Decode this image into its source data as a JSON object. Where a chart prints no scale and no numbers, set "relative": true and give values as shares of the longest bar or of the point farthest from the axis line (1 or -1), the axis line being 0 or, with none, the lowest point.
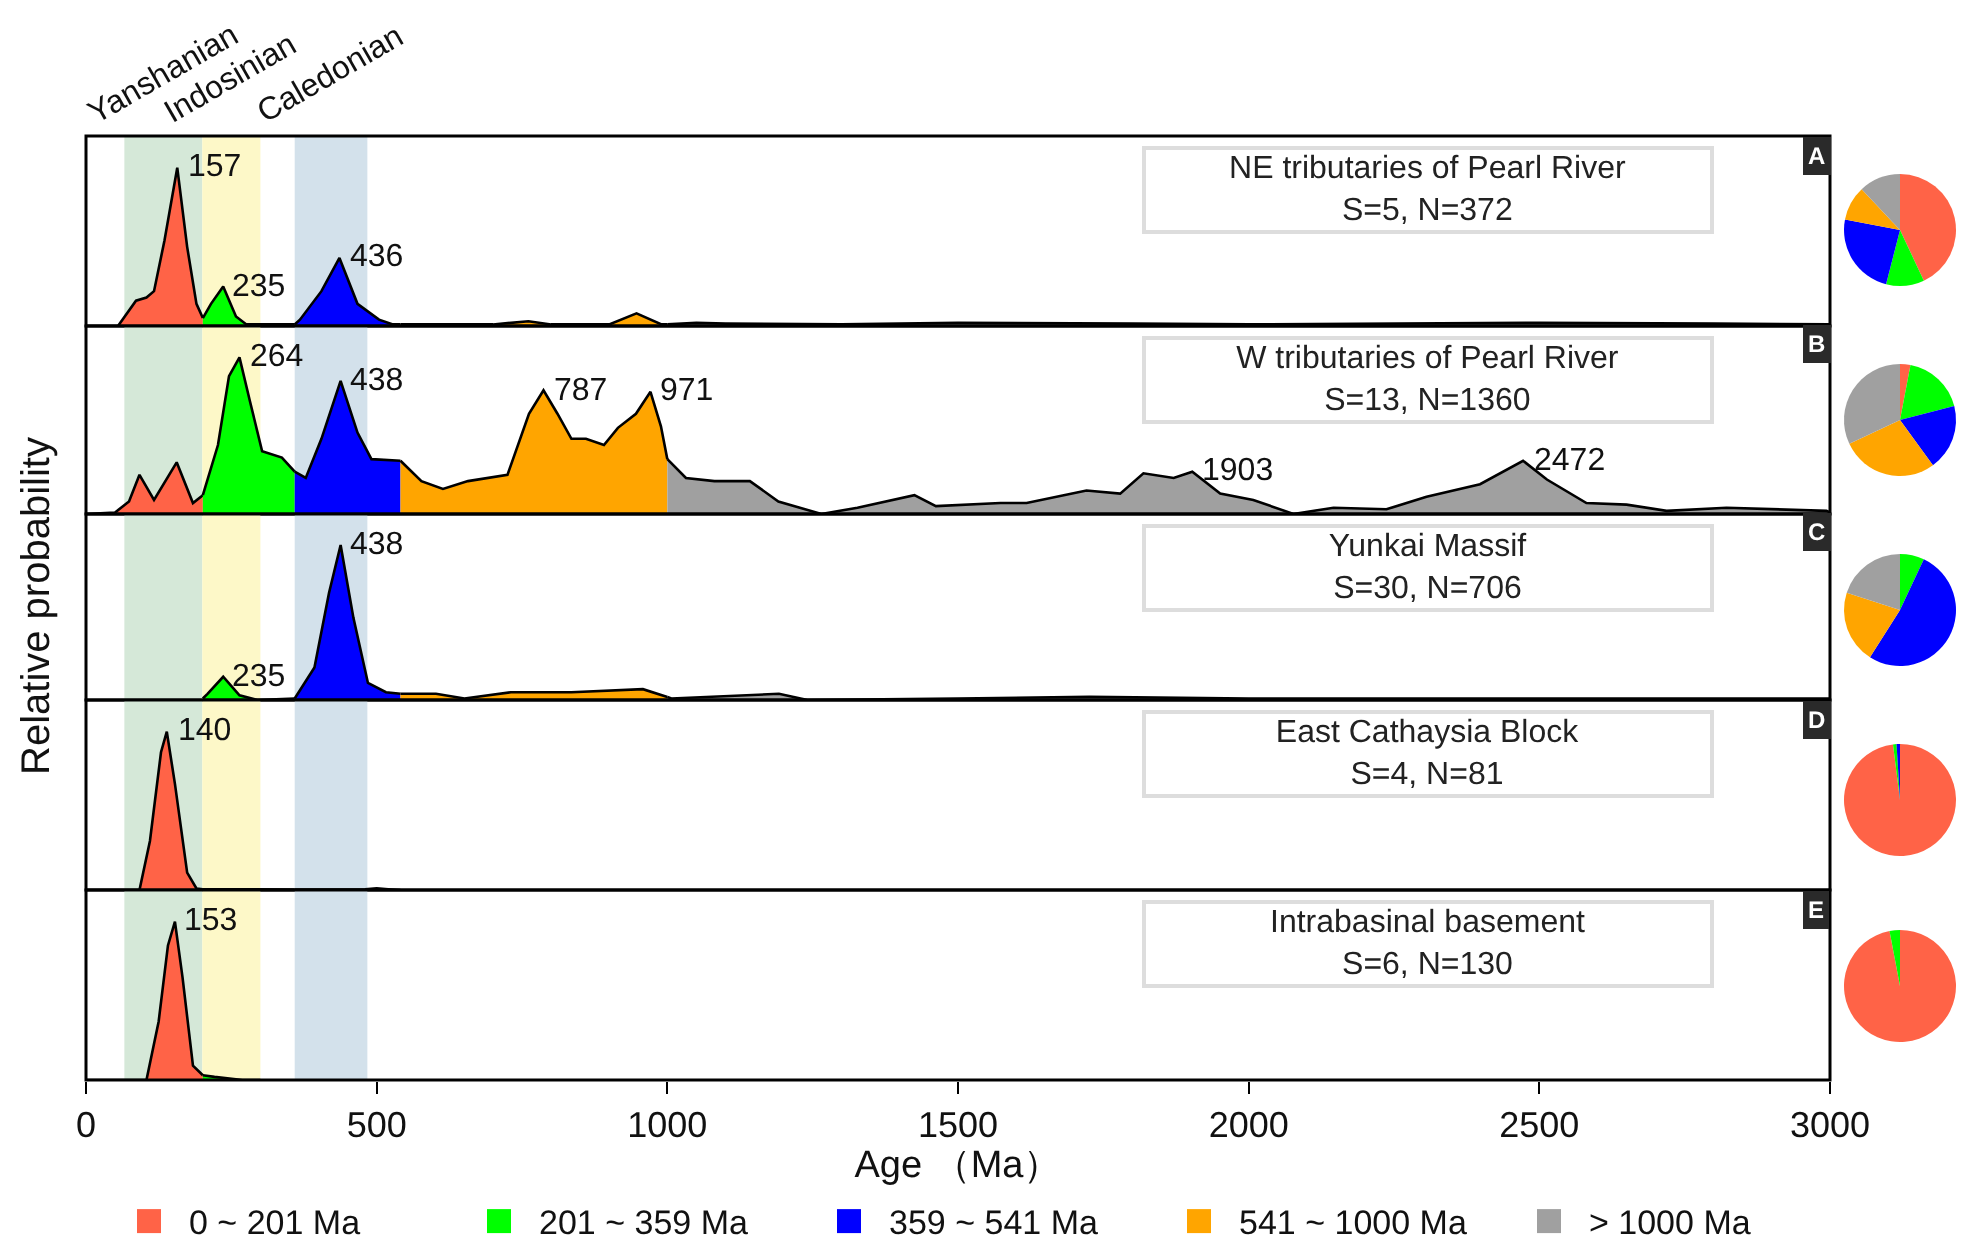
{
  "chart_data": [
    {
      "type": "area",
      "relative": true,
      "title": "NE tributaries of Pearl River",
      "subtitle": "S=5, N=372",
      "xlim": [
        0,
        3000
      ],
      "tick_labels": false,
      "bands": [
        {
          "axis": "x",
          "from": 66,
          "to": 200,
          "label": "Yanshanian",
          "color": "#d5e8d8"
        },
        {
          "axis": "x",
          "from": 200,
          "to": 300,
          "label": "Indosinian",
          "color": "#fdf8c8"
        },
        {
          "axis": "x",
          "from": 359,
          "to": 484,
          "label": "Caledonian",
          "color": "#d3e1eb"
        }
      ],
      "series": [
        {
          "color": "#ff6347",
          "x": [
            0,
            55,
            86,
            104,
            117,
            135,
            157,
            174,
            190,
            201
          ],
          "values": [
            0,
            0,
            0.16,
            0.18,
            0.22,
            0.54,
            1,
            0.5,
            0.14,
            0.05
          ]
        },
        {
          "color": "#00ff00",
          "x": [
            201,
            215,
            236,
            258,
            276,
            300,
            359
          ],
          "values": [
            0.05,
            0.14,
            0.25,
            0.06,
            0.01,
            0.01,
            0.01
          ]
        },
        {
          "color": "#0000ff",
          "x": [
            359,
            368,
            405,
            436,
            467,
            504,
            528,
            541
          ],
          "values": [
            0.01,
            0.04,
            0.22,
            0.43,
            0.14,
            0.04,
            0.01,
            0.01
          ]
        },
        {
          "color": "#ffa500",
          "x": [
            541,
            700,
            761,
            800,
            900,
            947,
            990,
            1000
          ],
          "values": [
            0.01,
            0.01,
            0.03,
            0.01,
            0.01,
            0.08,
            0.01,
            0.01
          ]
        },
        {
          "color": "#a0a0a0",
          "x": [
            1000,
            1050,
            1100,
            1300,
            1500,
            1800,
            2000,
            2500,
            2800,
            3000
          ],
          "values": [
            0.01,
            0.02,
            0.015,
            0.01,
            0.02,
            0.015,
            0.01,
            0.02,
            0.015,
            0.01
          ]
        }
      ],
      "annotations": [
        "A",
        {
          "text": "157",
          "x": 157,
          "y": 1
        },
        {
          "text": "235",
          "x": 235,
          "y": 0.25
        },
        {
          "text": "436",
          "x": 436,
          "y": 0.43
        }
      ]
    },
    {
      "type": "area",
      "relative": true,
      "title": "W tributaries of Pearl River",
      "subtitle": "S=13, N=1360",
      "xlim": [
        0,
        3000
      ],
      "tick_labels": false,
      "bands": [
        {
          "axis": "x",
          "from": 66,
          "to": 200,
          "color": "#d5e8d8"
        },
        {
          "axis": "x",
          "from": 200,
          "to": 300,
          "color": "#fdf8c8"
        },
        {
          "axis": "x",
          "from": 359,
          "to": 484,
          "color": "#d3e1eb"
        }
      ],
      "series": [
        {
          "color": "#ff6347",
          "x": [
            0,
            50,
            74,
            92,
            117,
            156,
            184,
            201
          ],
          "values": [
            0,
            0.01,
            0.08,
            0.25,
            0.09,
            0.33,
            0.07,
            0.12
          ]
        },
        {
          "color": "#00ff00",
          "x": [
            201,
            227,
            246,
            264,
            282,
            303,
            337,
            359
          ],
          "values": [
            0.12,
            0.44,
            0.88,
            1,
            0.72,
            0.4,
            0.36,
            0.27
          ]
        },
        {
          "color": "#0000ff",
          "x": [
            359,
            378,
            405,
            438,
            467,
            491,
            541
          ],
          "values": [
            0.27,
            0.23,
            0.48,
            0.85,
            0.52,
            0.35,
            0.34
          ]
        },
        {
          "color": "#ffa500",
          "x": [
            541,
            577,
            614,
            657,
            725,
            762,
            787,
            811,
            835,
            860,
            891,
            915,
            946,
            971,
            989,
            1000
          ],
          "values": [
            0.34,
            0.21,
            0.16,
            0.21,
            0.25,
            0.64,
            0.79,
            0.64,
            0.48,
            0.48,
            0.44,
            0.55,
            0.64,
            0.78,
            0.56,
            0.35
          ]
        },
        {
          "color": "#a0a0a0",
          "x": [
            1000,
            1032,
            1081,
            1142,
            1191,
            1265,
            1327,
            1425,
            1462,
            1573,
            1618,
            1721,
            1779,
            1819,
            1871,
            1903,
            1951,
            2008,
            2077,
            2146,
            2237,
            2306,
            2398,
            2472,
            2513,
            2581,
            2650,
            2719,
            2822,
            2994,
            3000
          ],
          "values": [
            0.35,
            0.23,
            0.21,
            0.21,
            0.08,
            0,
            0.04,
            0.12,
            0.05,
            0.07,
            0.07,
            0.15,
            0.13,
            0.26,
            0.23,
            0.27,
            0.13,
            0.09,
            0,
            0.04,
            0.03,
            0.11,
            0.19,
            0.34,
            0.22,
            0.07,
            0.06,
            0.02,
            0.04,
            0.02,
            0.01
          ]
        }
      ],
      "annotations": [
        "B",
        {
          "text": "264",
          "x": 264,
          "y": 1
        },
        {
          "text": "438",
          "x": 438,
          "y": 0.85
        },
        {
          "text": "787",
          "x": 787,
          "y": 0.79
        },
        {
          "text": "971",
          "x": 971,
          "y": 0.78
        },
        {
          "text": "1903",
          "x": 1903,
          "y": 0.27
        },
        {
          "text": "2472",
          "x": 2472,
          "y": 0.34
        }
      ]
    },
    {
      "type": "area",
      "relative": true,
      "title": "Yunkai Massif",
      "subtitle": "S=30, N=706",
      "ylabel": "Relative probability",
      "xlim": [
        0,
        3000
      ],
      "tick_labels": false,
      "bands": [
        {
          "axis": "x",
          "from": 66,
          "to": 200,
          "color": "#d5e8d8"
        },
        {
          "axis": "x",
          "from": 200,
          "to": 300,
          "color": "#fdf8c8"
        },
        {
          "axis": "x",
          "from": 359,
          "to": 484,
          "color": "#d3e1eb"
        }
      ],
      "series": [
        {
          "color": "#00ff00",
          "x": [
            201,
            209,
            236,
            264,
            295,
            359
          ],
          "values": [
            0.01,
            0.04,
            0.15,
            0.03,
            0,
            0.01
          ]
        },
        {
          "color": "#0000ff",
          "x": [
            359,
            393,
            418,
            438,
            460,
            485,
            516,
            541
          ],
          "values": [
            0.01,
            0.21,
            0.69,
            1,
            0.53,
            0.11,
            0.05,
            0.04
          ]
        },
        {
          "color": "#ffa500",
          "x": [
            541,
            602,
            651,
            731,
            835,
            958,
            1000
          ],
          "values": [
            0.04,
            0.04,
            0.01,
            0.05,
            0.05,
            0.07,
            0.02
          ]
        },
        {
          "color": "#a0a0a0",
          "x": [
            1000,
            1007,
            1192,
            1241,
            1500,
            1726,
            2000,
            2500,
            3000
          ],
          "values": [
            0.02,
            0.01,
            0.04,
            0,
            0.01,
            0.02,
            0.01,
            0.01,
            0.01
          ]
        }
      ],
      "annotations": [
        "C",
        {
          "text": "438",
          "x": 438,
          "y": 1
        },
        {
          "text": "235",
          "x": 235,
          "y": 0.15
        }
      ]
    },
    {
      "type": "area",
      "relative": true,
      "title": "East Cathaysia Block",
      "subtitle": "S=4, N=81",
      "xlim": [
        0,
        3000
      ],
      "tick_labels": false,
      "bands": [
        {
          "axis": "x",
          "from": 66,
          "to": 200,
          "color": "#d5e8d8"
        },
        {
          "axis": "x",
          "from": 200,
          "to": 300,
          "color": "#fdf8c8"
        },
        {
          "axis": "x",
          "from": 359,
          "to": 484,
          "color": "#d3e1eb"
        }
      ],
      "series": [
        {
          "color": "#ff6347",
          "x": [
            0,
            92,
            110,
            129,
            139,
            153,
            174,
            190,
            201
          ],
          "values": [
            0,
            0,
            0.31,
            0.87,
            1,
            0.67,
            0.11,
            0.01,
            0.005
          ]
        },
        {
          "color": "#00ff00",
          "x": [
            201,
            359
          ],
          "values": [
            0.005,
            0.003
          ]
        },
        {
          "color": "#0000ff",
          "x": [
            359,
            480,
            500,
            520,
            541
          ],
          "values": [
            0.003,
            0.005,
            0.01,
            0.005,
            0
          ]
        }
      ],
      "annotations": [
        "D",
        {
          "text": "140",
          "x": 140,
          "y": 1
        }
      ]
    },
    {
      "type": "area",
      "relative": true,
      "title": "Intrabasinal basement",
      "subtitle": "S=6, N=130",
      "xlabel": "Age （Ma）",
      "xlim": [
        0,
        3000
      ],
      "xticks": [
        0,
        500,
        1000,
        1500,
        2000,
        2500,
        3000
      ],
      "tick_labels": "x",
      "bands": [
        {
          "axis": "x",
          "from": 66,
          "to": 200,
          "color": "#d5e8d8"
        },
        {
          "axis": "x",
          "from": 200,
          "to": 300,
          "color": "#fdf8c8"
        },
        {
          "axis": "x",
          "from": 359,
          "to": 484,
          "color": "#d3e1eb"
        }
      ],
      "series": [
        {
          "color": "#ff6347",
          "x": [
            0,
            104,
            125,
            141,
            153,
            166,
            184,
            201
          ],
          "values": [
            0,
            0,
            0.37,
            0.85,
            1,
            0.65,
            0.09,
            0.03
          ]
        },
        {
          "color": "#00ff00",
          "x": [
            201,
            221,
            269,
            300
          ],
          "values": [
            0.03,
            0.02,
            0,
            0
          ]
        }
      ],
      "annotations": [
        "E",
        {
          "text": "153",
          "x": 153,
          "y": 1
        }
      ]
    },
    {
      "type": "pie",
      "categories": [
        null,
        null,
        null,
        null,
        null
      ],
      "colors": [
        "#ff6347",
        "#00ff00",
        "#0000ff",
        "#ffa500",
        "#a0a0a0"
      ],
      "values": [
        43,
        11,
        24,
        10,
        12
      ]
    },
    {
      "type": "pie",
      "categories": [
        "0 ~ 201 Ma",
        "201 ~ 359 Ma",
        "359 ~ 541 Ma",
        "541 ~ 1000 Ma",
        "> 1000 Ma"
      ],
      "colors": [
        "#ff6347",
        "#00ff00",
        "#0000ff",
        "#ffa500",
        "#a0a0a0"
      ],
      "values": [
        3,
        18,
        19,
        28,
        32
      ],
      "legend": "bottom"
    },
    {
      "type": "pie",
      "categories": [
        null,
        null,
        null,
        null,
        null
      ],
      "colors": [
        "#ff6347",
        "#00ff00",
        "#0000ff",
        "#ffa500",
        "#a0a0a0"
      ],
      "values": [
        0,
        7,
        52,
        21,
        20
      ]
    },
    {
      "type": "pie",
      "categories": [
        null,
        null,
        null,
        null,
        null
      ],
      "colors": [
        "#ff6347",
        "#00ff00",
        "#0000ff",
        "#ffa500",
        "#a0a0a0"
      ],
      "values": [
        98,
        1,
        1,
        0,
        0
      ]
    },
    {
      "type": "pie",
      "categories": [
        null,
        null,
        null,
        null,
        null
      ],
      "colors": [
        "#ff6347",
        "#00ff00",
        "#0000ff",
        "#ffa500",
        "#a0a0a0"
      ],
      "values": [
        97,
        3,
        0,
        0,
        0
      ]
    }
  ]
}
